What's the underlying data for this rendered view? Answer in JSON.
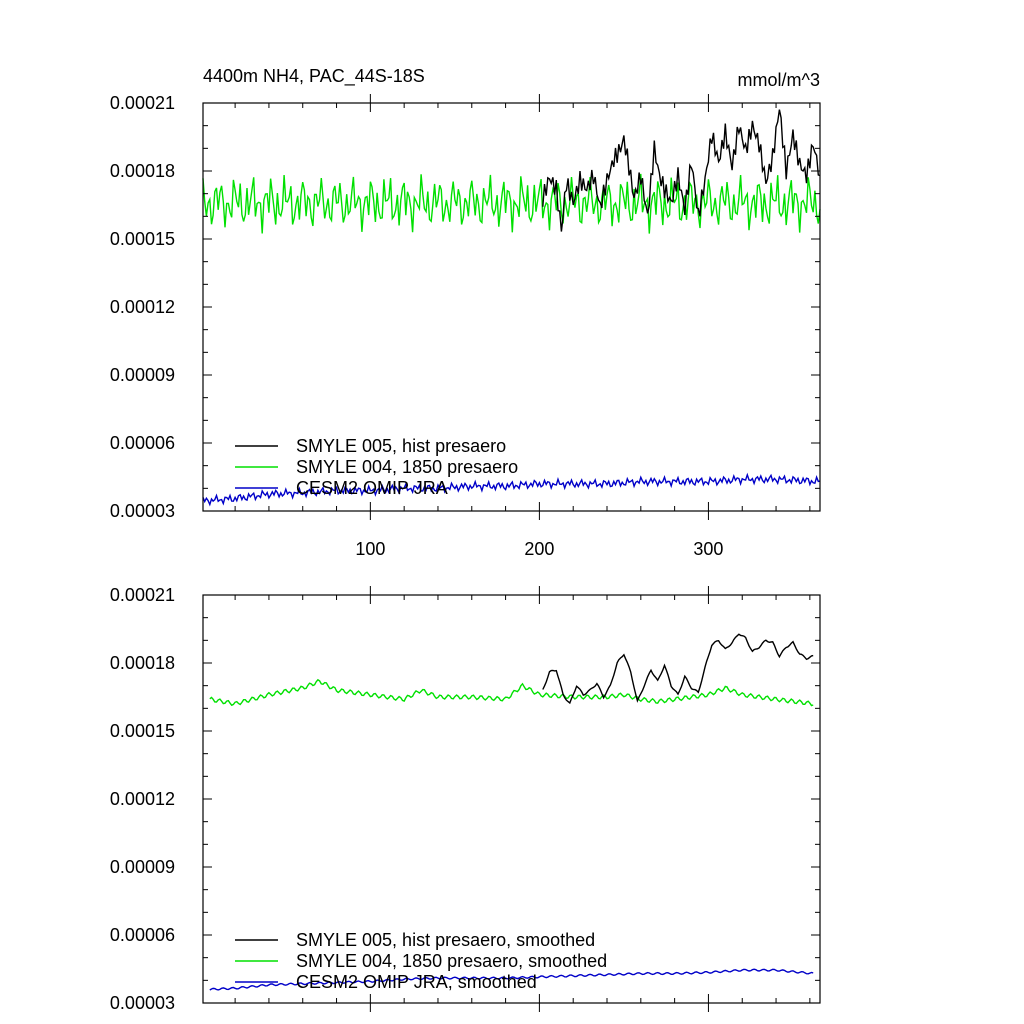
{
  "chart_data": [
    {
      "type": "line",
      "title": "4400m NH4, PAC_44S-18S",
      "units": "mmol/m^3",
      "xlim": [
        1,
        366
      ],
      "ylim": [
        3e-05,
        0.00021
      ],
      "yticks": [
        "0.00003",
        "0.00006",
        "0.00009",
        "0.00012",
        "0.00015",
        "0.00018",
        "0.00021"
      ],
      "xticks": [
        "100",
        "200",
        "300"
      ],
      "grid": false,
      "legend_position": "bottom-left",
      "series": [
        {
          "name": "SMYLE 005, hist presaero",
          "color": "#000000",
          "x": [
            202,
            206,
            210,
            213,
            216,
            220,
            224,
            228,
            232,
            236,
            240,
            244,
            248,
            250,
            253,
            256,
            260,
            264,
            268,
            271,
            274,
            278,
            282,
            286,
            290,
            294,
            298,
            302,
            306,
            310,
            314,
            318,
            322,
            326,
            330,
            334,
            338,
            342,
            346,
            350,
            354,
            358,
            362,
            366
          ],
          "y": [
            0.000168,
            0.000177,
            0.000172,
            0.000154,
            0.000175,
            0.000166,
            0.000176,
            0.000172,
            0.000178,
            0.000164,
            0.000176,
            0.000185,
            0.00019,
            0.000194,
            0.000182,
            0.000168,
            0.000178,
            0.00016,
            0.00019,
            0.000178,
            0.000172,
            0.000166,
            0.000178,
            0.000163,
            0.000184,
            0.00016,
            0.000176,
            0.000196,
            0.000184,
            0.000197,
            0.000182,
            0.0002,
            0.000189,
            0.0002,
            0.000192,
            0.000175,
            0.000186,
            0.000208,
            0.00018,
            0.000196,
            0.000183,
            0.000178,
            0.000192,
            0.000178
          ]
        },
        {
          "name": "SMYLE 004, 1850 presaero",
          "color": "#00e000",
          "x": [
            1,
            366
          ],
          "y": [
            0.000166,
            0.000166
          ]
        },
        {
          "name": "CESM2 OMIP JRA",
          "color": "#0000c8",
          "x": [
            1,
            20,
            40,
            60,
            80,
            100,
            120,
            140,
            160,
            180,
            200,
            220,
            240,
            260,
            280,
            300,
            320,
            340,
            366
          ],
          "y": [
            3.45e-05,
            3.55e-05,
            3.75e-05,
            3.8e-05,
            3.9e-05,
            3.9e-05,
            4e-05,
            4e-05,
            4.1e-05,
            4.1e-05,
            4.2e-05,
            4.2e-05,
            4.2e-05,
            4.3e-05,
            4.3e-05,
            4.3e-05,
            4.4e-05,
            4.4e-05,
            4.3e-05
          ]
        }
      ]
    },
    {
      "type": "line",
      "xlim": [
        1,
        366
      ],
      "ylim": [
        3e-05,
        0.00021
      ],
      "yticks": [
        "0.00003",
        "0.00006",
        "0.00009",
        "0.00012",
        "0.00015",
        "0.00018",
        "0.00021"
      ],
      "grid": false,
      "legend_position": "bottom-left",
      "series": [
        {
          "name": "SMYLE 005, hist presaero, smoothed",
          "color": "#000000",
          "x": [
            202,
            206,
            210,
            214,
            218,
            222,
            226,
            230,
            234,
            238,
            242,
            246,
            250,
            254,
            258,
            262,
            266,
            270,
            274,
            278,
            282,
            286,
            290,
            294,
            298,
            302,
            306,
            310,
            314,
            318,
            322,
            326,
            330,
            334,
            338,
            342,
            346,
            350,
            354,
            358,
            362
          ],
          "y": [
            0.000168,
            0.000176,
            0.000177,
            0.000166,
            0.000162,
            0.00017,
            0.000166,
            0.000168,
            0.000171,
            0.000165,
            0.00017,
            0.00018,
            0.000184,
            0.000176,
            0.000163,
            0.00017,
            0.000177,
            0.000172,
            0.000179,
            0.00017,
            0.000166,
            0.000174,
            0.000169,
            0.000167,
            0.000178,
            0.000188,
            0.00019,
            0.000186,
            0.000189,
            0.000193,
            0.000191,
            0.000185,
            0.000187,
            0.00019,
            0.000189,
            0.000183,
            0.000187,
            0.000189,
            0.000184,
            0.000182,
            0.000183
          ]
        },
        {
          "name": "SMYLE 004, 1850 presaero, smoothed",
          "color": "#00e000",
          "x": [
            5,
            20,
            40,
            60,
            70,
            80,
            100,
            120,
            130,
            140,
            160,
            180,
            190,
            200,
            220,
            240,
            250,
            260,
            270,
            280,
            300,
            310,
            320,
            340,
            362
          ],
          "y": [
            0.000164,
            0.000162,
            0.000166,
            0.000169,
            0.000172,
            0.000168,
            0.000166,
            0.000164,
            0.000168,
            0.000165,
            0.000165,
            0.000164,
            0.00017,
            0.000166,
            0.000165,
            0.000165,
            0.000166,
            0.000164,
            0.000163,
            0.000164,
            0.000166,
            0.000169,
            0.000166,
            0.000164,
            0.000162
          ]
        },
        {
          "name": "CESM2 OMIP JRA, smoothed",
          "color": "#0000c8",
          "x": [
            5,
            20,
            40,
            60,
            80,
            100,
            120,
            140,
            160,
            180,
            200,
            220,
            240,
            260,
            280,
            300,
            320,
            340,
            362
          ],
          "y": [
            3.6e-05,
            3.65e-05,
            3.8e-05,
            3.85e-05,
            3.9e-05,
            3.95e-05,
            4.05e-05,
            4.1e-05,
            4.1e-05,
            4.1e-05,
            4.15e-05,
            4.2e-05,
            4.25e-05,
            4.3e-05,
            4.3e-05,
            4.35e-05,
            4.45e-05,
            4.45e-05,
            4.3e-05
          ]
        }
      ]
    }
  ]
}
